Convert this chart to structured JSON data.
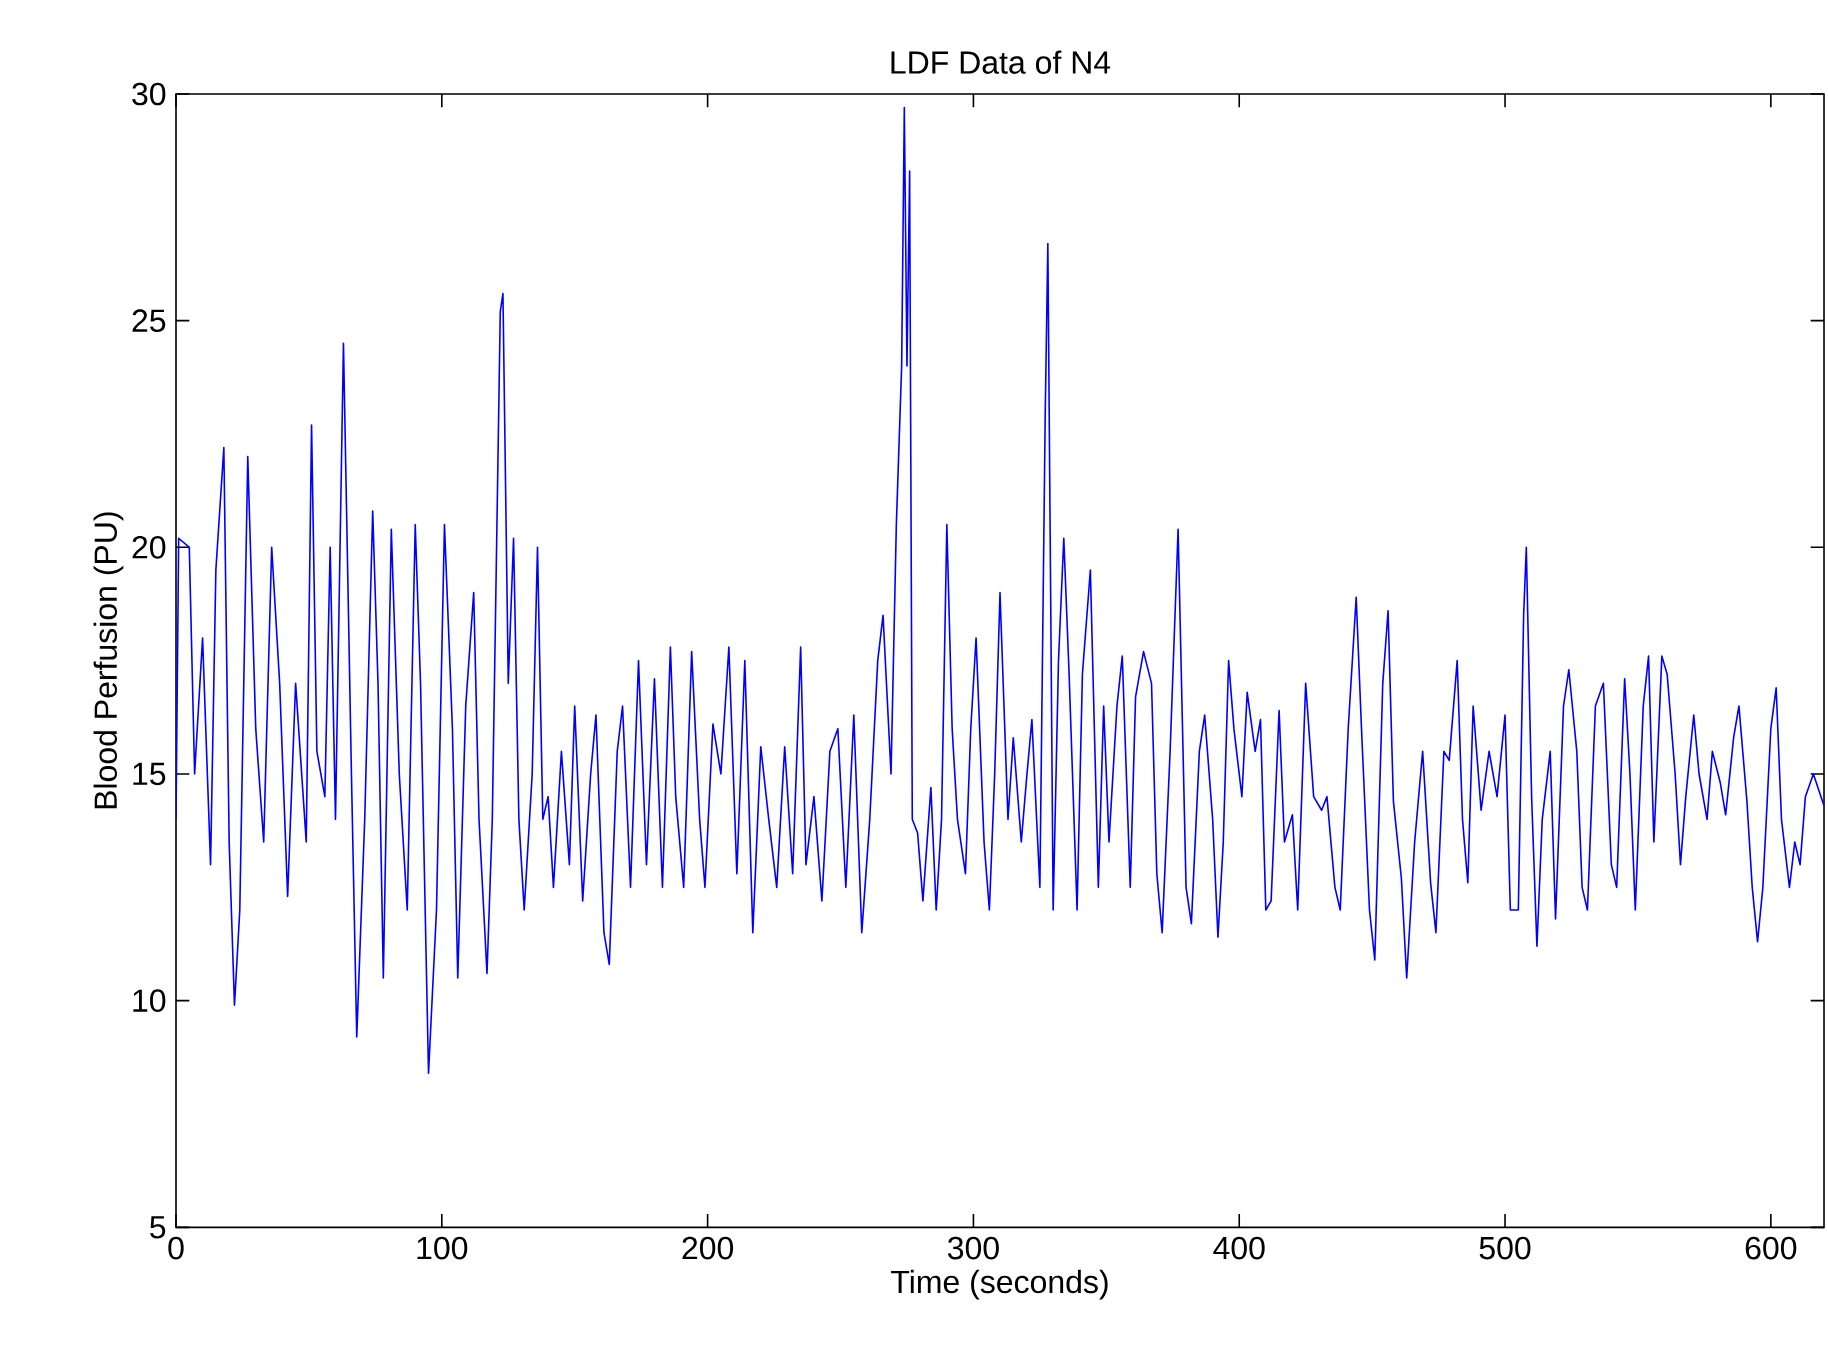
{
  "chart_data": {
    "type": "line",
    "title": "LDF Data of N4",
    "xlabel": "Time (seconds)",
    "ylabel": "Blood Perfusion (PU)",
    "xlim": [
      0,
      620
    ],
    "ylim": [
      5,
      30
    ],
    "xticks": [
      0,
      100,
      200,
      300,
      400,
      500,
      600
    ],
    "yticks": [
      5,
      10,
      15,
      20,
      25,
      30
    ],
    "grid": false,
    "marker": "none",
    "line_style": "solid",
    "series": [
      {
        "color": "#0000ff",
        "x": [
          0,
          1,
          5,
          7,
          10,
          13,
          15,
          18,
          20,
          22,
          24,
          27,
          30,
          33,
          36,
          39,
          42,
          45,
          49,
          51,
          53,
          56,
          58,
          60,
          63,
          66,
          68,
          71,
          74,
          76,
          78,
          81,
          84,
          87,
          90,
          92,
          95,
          98,
          101,
          104,
          106,
          109,
          112,
          114,
          117,
          119,
          122,
          123,
          125,
          127,
          129,
          131,
          134,
          136,
          138,
          140,
          142,
          145,
          148,
          150,
          153,
          156,
          158,
          161,
          163,
          166,
          168,
          171,
          174,
          177,
          180,
          183,
          186,
          188,
          191,
          194,
          197,
          199,
          202,
          205,
          208,
          211,
          214,
          217,
          220,
          223,
          226,
          229,
          232,
          235,
          237,
          240,
          243,
          246,
          249,
          252,
          255,
          258,
          261,
          264,
          266,
          269,
          271,
          273,
          274,
          275,
          276,
          277,
          279,
          281,
          284,
          286,
          288,
          290,
          292,
          294,
          297,
          299,
          301,
          304,
          306,
          308,
          310,
          313,
          315,
          318,
          320,
          322,
          325,
          327,
          328,
          330,
          332,
          334,
          336,
          339,
          341,
          344,
          347,
          349,
          351,
          354,
          356,
          359,
          361,
          364,
          367,
          369,
          371,
          374,
          377,
          380,
          382,
          385,
          387,
          390,
          392,
          394,
          396,
          398,
          401,
          403,
          406,
          408,
          410,
          412,
          415,
          417,
          420,
          422,
          425,
          428,
          431,
          433,
          436,
          438,
          441,
          444,
          446,
          449,
          451,
          454,
          456,
          458,
          461,
          463,
          466,
          469,
          472,
          474,
          477,
          479,
          482,
          484,
          486,
          488,
          491,
          494,
          497,
          500,
          502,
          505,
          507,
          508,
          510,
          512,
          514,
          517,
          519,
          522,
          524,
          527,
          529,
          531,
          534,
          537,
          540,
          542,
          545,
          547,
          549,
          552,
          554,
          556,
          559,
          561,
          564,
          566,
          568,
          571,
          573,
          576,
          578,
          581,
          583,
          586,
          588,
          591,
          593,
          595,
          597,
          600,
          602,
          604,
          607,
          609,
          611,
          613,
          616,
          620
        ],
        "values": [
          14,
          20.2,
          20,
          15,
          18,
          13,
          19.5,
          22.2,
          13.5,
          9.9,
          12,
          22,
          16,
          13.5,
          20,
          17,
          12.3,
          17,
          13.5,
          22.7,
          15.5,
          14.5,
          20,
          14,
          24.5,
          15,
          9.2,
          14,
          20.8,
          17,
          10.5,
          20.4,
          15,
          12,
          20.5,
          17,
          8.4,
          12,
          20.5,
          16,
          10.5,
          16.5,
          19,
          14,
          10.6,
          14,
          25.2,
          25.6,
          17,
          20.2,
          14,
          12,
          15,
          20,
          14,
          14.5,
          12.5,
          15.5,
          13,
          16.5,
          12.2,
          15,
          16.3,
          11.5,
          10.8,
          15.5,
          16.5,
          12.5,
          17.5,
          13,
          17.1,
          12.5,
          17.8,
          14.5,
          12.5,
          17.7,
          14,
          12.5,
          16.1,
          15,
          17.8,
          12.8,
          17.5,
          11.5,
          15.6,
          14,
          12.5,
          15.6,
          12.8,
          17.8,
          13,
          14.5,
          12.2,
          15.5,
          16,
          12.5,
          16.3,
          11.5,
          14,
          17.5,
          18.5,
          15,
          20.5,
          24,
          29.7,
          24,
          28.3,
          14,
          13.7,
          12.2,
          14.7,
          12,
          14,
          20.5,
          16,
          14,
          12.8,
          16,
          18,
          13.5,
          12,
          15,
          19,
          14,
          15.8,
          13.5,
          14.9,
          16.2,
          12.5,
          22.9,
          26.7,
          12,
          17.5,
          20.2,
          17.2,
          12,
          17.2,
          19.5,
          12.5,
          16.5,
          13.5,
          16.5,
          17.6,
          12.5,
          16.7,
          17.7,
          17,
          12.8,
          11.5,
          15.5,
          20.4,
          12.5,
          11.7,
          15.5,
          16.3,
          14,
          11.4,
          13.5,
          17.5,
          16,
          14.5,
          16.8,
          15.5,
          16.2,
          12,
          12.2,
          16.4,
          13.5,
          14.1,
          12,
          17,
          14.5,
          14.2,
          14.5,
          12.5,
          12,
          16,
          18.9,
          16,
          12,
          10.9,
          17,
          18.6,
          14.4,
          12.7,
          10.5,
          13.5,
          15.5,
          12.6,
          11.5,
          15.5,
          15.3,
          17.5,
          14,
          12.6,
          16.5,
          14.2,
          15.5,
          14.5,
          16.3,
          12,
          12,
          18.5,
          20,
          14.5,
          11.2,
          14,
          15.5,
          11.8,
          16.5,
          17.3,
          15.5,
          12.5,
          12,
          16.5,
          17,
          13,
          12.5,
          17.1,
          15,
          12,
          16.5,
          17.6,
          13.5,
          17.6,
          17.2,
          15,
          13,
          14.5,
          16.3,
          15,
          14,
          15.5,
          14.8,
          14.1,
          15.8,
          16.5,
          14.4,
          12.5,
          11.3,
          12.5,
          16,
          16.9,
          14,
          12.5,
          13.5,
          13,
          14.5,
          15,
          14.3
        ]
      }
    ]
  }
}
